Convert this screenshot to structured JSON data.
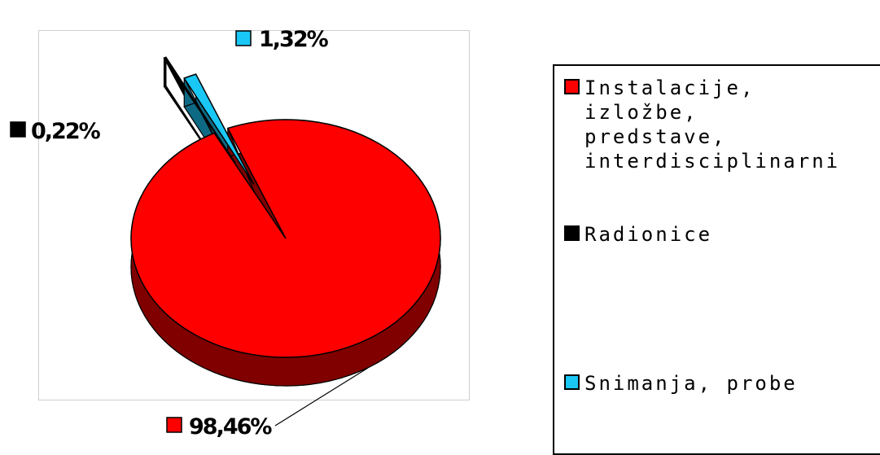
{
  "chart_data": {
    "type": "pie",
    "style": "3d-exploded",
    "slices": [
      {
        "label": "Instalacije,\nizložbe,\npredstave,\ninterdisciplinarni",
        "value": 98.46,
        "value_label": "98,46%",
        "color": "#ff0000",
        "side_color": "#800000"
      },
      {
        "label": "Radionice",
        "value": 0.22,
        "value_label": "0,22%",
        "color": "#000000",
        "side_color": "#000000"
      },
      {
        "label": "Snimanja, probe",
        "value": 1.32,
        "value_label": "1,32%",
        "color": "#1ac8f5",
        "side_color": "#0e6a84"
      }
    ],
    "legend_position": "right",
    "title": "",
    "grid": false
  }
}
